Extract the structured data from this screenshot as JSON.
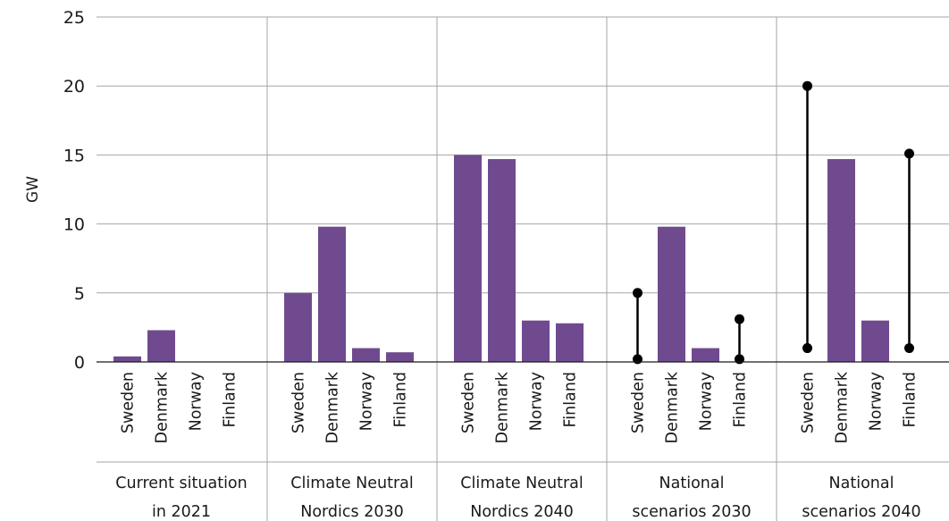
{
  "chart_data": {
    "type": "bar",
    "ylabel": "GW",
    "ylim": [
      0,
      25
    ],
    "yticks": [
      "0",
      "5",
      "10",
      "15",
      "20",
      "25"
    ],
    "ytick_values": [
      0,
      5,
      10,
      15,
      20,
      25
    ],
    "grid": "horizontal",
    "bar_color": "#704a8e",
    "range_color": "#000000",
    "groups": [
      {
        "label_lines": [
          "Current situation",
          "in 2021"
        ],
        "categories": [
          "Sweden",
          "Denmark",
          "Norway",
          "Finland"
        ],
        "values": [
          0.4,
          2.3,
          0,
          0
        ],
        "ranges": []
      },
      {
        "label_lines": [
          "Climate Neutral",
          "Nordics 2030"
        ],
        "categories": [
          "Sweden",
          "Denmark",
          "Norway",
          "Finland"
        ],
        "values": [
          5.0,
          9.8,
          1.0,
          0.7
        ],
        "ranges": []
      },
      {
        "label_lines": [
          "Climate Neutral",
          "Nordics 2040"
        ],
        "categories": [
          "Sweden",
          "Denmark",
          "Norway",
          "Finland"
        ],
        "values": [
          15.0,
          14.7,
          3.0,
          2.8
        ],
        "ranges": []
      },
      {
        "label_lines": [
          "National",
          "scenarios 2030"
        ],
        "categories": [
          "Sweden",
          "Denmark",
          "Norway",
          "Finland"
        ],
        "values": [
          null,
          9.8,
          1.0,
          null
        ],
        "ranges": [
          {
            "category": "Sweden",
            "low": 0.2,
            "high": 5.0
          },
          {
            "category": "Finland",
            "low": 0.2,
            "high": 3.1
          }
        ]
      },
      {
        "label_lines": [
          "National",
          "scenarios 2040"
        ],
        "categories": [
          "Sweden",
          "Denmark",
          "Norway",
          "Finland"
        ],
        "values": [
          null,
          14.7,
          3.0,
          null
        ],
        "ranges": [
          {
            "category": "Sweden",
            "low": 1.0,
            "high": 20.0
          },
          {
            "category": "Finland",
            "low": 1.0,
            "high": 15.1
          }
        ]
      }
    ]
  }
}
